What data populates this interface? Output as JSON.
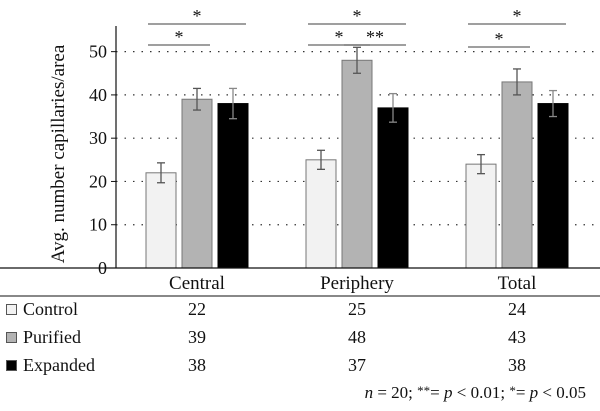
{
  "chart_data": {
    "type": "bar",
    "categories": [
      "Central",
      "Periphery",
      "Total"
    ],
    "ylabel": "Avg. number capillaries/area",
    "ylim": [
      0,
      55
    ],
    "yticks": [
      0,
      10,
      20,
      30,
      40,
      50
    ],
    "grid": "dotted horizontal",
    "series": [
      {
        "name": "Control",
        "color": "#f2f2f2",
        "values": [
          22,
          25,
          24
        ],
        "errors": [
          2.3,
          2.2,
          2.2
        ]
      },
      {
        "name": "Purified",
        "color": "#b3b3b3",
        "values": [
          39,
          48,
          43
        ],
        "errors": [
          2.5,
          3.0,
          3.0
        ]
      },
      {
        "name": "Expanded",
        "color": "#000000",
        "values": [
          38,
          37,
          38
        ],
        "errors": [
          3.5,
          3.3,
          3.0
        ]
      }
    ],
    "significance": [
      {
        "category": "Central",
        "from": "Control",
        "to": "Expanded",
        "label": "*"
      },
      {
        "category": "Central",
        "from": "Control",
        "to": "Purified",
        "label": "*"
      },
      {
        "category": "Periphery",
        "from": "Control",
        "to": "Expanded",
        "label": "*"
      },
      {
        "category": "Periphery",
        "from": "Control",
        "to": "Purified",
        "label": "*"
      },
      {
        "category": "Periphery",
        "from": "Purified",
        "to": "Expanded",
        "label": "**"
      },
      {
        "category": "Total",
        "from": "Control",
        "to": "Expanded",
        "label": "*"
      },
      {
        "category": "Total",
        "from": "Control",
        "to": "Purified",
        "label": "*"
      }
    ]
  },
  "table": {
    "rows": [
      {
        "label": "Control",
        "values": [
          "22",
          "25",
          "24"
        ]
      },
      {
        "label": "Purified",
        "values": [
          "39",
          "48",
          "43"
        ]
      },
      {
        "label": "Expanded",
        "values": [
          "38",
          "37",
          "38"
        ]
      }
    ]
  },
  "footnote": {
    "n_var": "n",
    "n_text": " = 20; ",
    "double_star": "**",
    "eq1": "= ",
    "p1": "p",
    "lt1": " < 0.01; ",
    "single_star": "*",
    "eq2": "= ",
    "p2": "p",
    "lt2": " < 0.05"
  }
}
